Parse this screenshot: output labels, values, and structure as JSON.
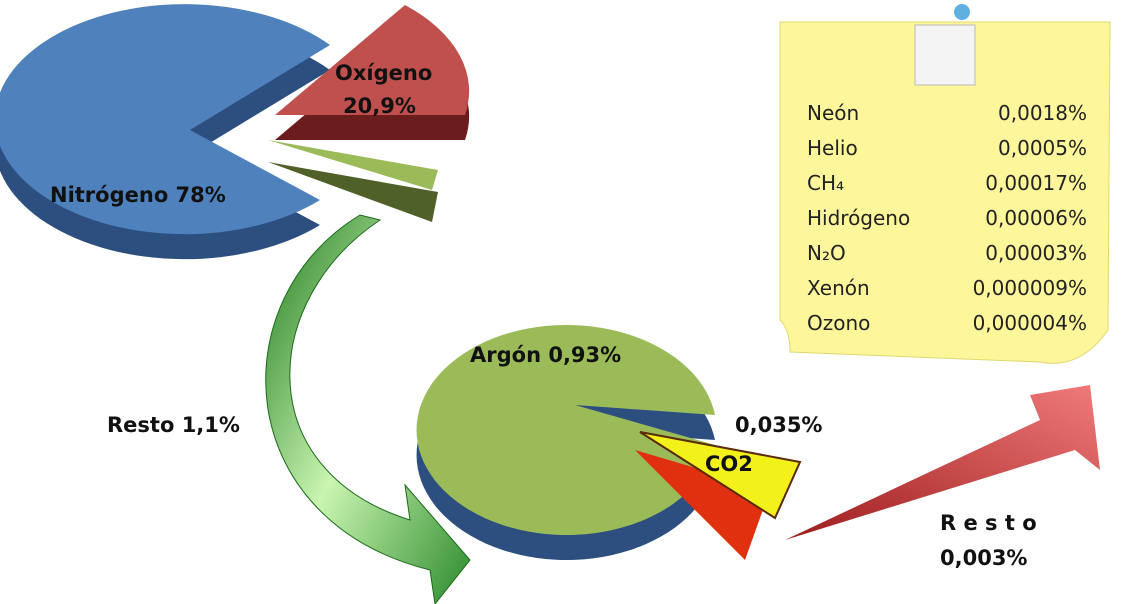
{
  "labels": {
    "nitrogeno": "Nitrógeno 78%",
    "oxigeno_name": "Oxígeno",
    "oxigeno_value": "20,9%",
    "resto1": "Resto 1,1%",
    "argon": "Argón 0,93%",
    "co2_value": "0,035%",
    "co2_name": "CO2",
    "resto2_name": "R e s t o",
    "resto2_value": "0,003%"
  },
  "note": {
    "rows": [
      [
        "Neón",
        "0,0018%"
      ],
      [
        "Helio",
        "0,0005%"
      ],
      [
        "CH₄",
        "0,00017%"
      ],
      [
        "Hidrógeno",
        "0,00006%"
      ],
      [
        "N₂O",
        "0,00003%"
      ],
      [
        "Xenón",
        "0,000009%"
      ],
      [
        "Ozono",
        "0,000004%"
      ]
    ]
  }
}
